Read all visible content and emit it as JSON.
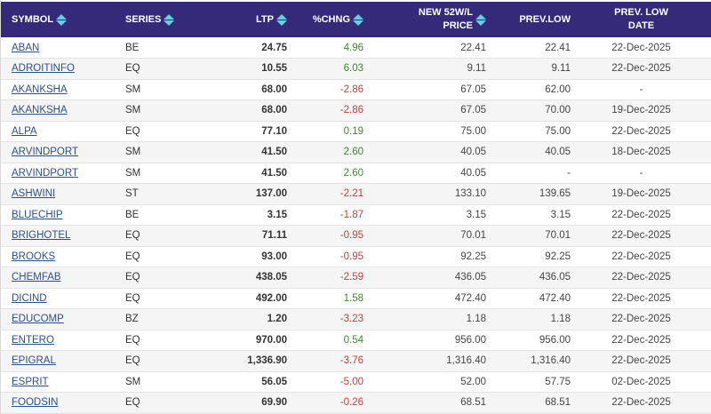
{
  "table": {
    "columns": [
      {
        "key": "symbol",
        "label": "SYMBOL",
        "sortable": true
      },
      {
        "key": "series",
        "label": "SERIES",
        "sortable": true
      },
      {
        "key": "ltp",
        "label": "LTP",
        "sortable": true
      },
      {
        "key": "pchng",
        "label": "%CHNG",
        "sortable": true
      },
      {
        "key": "new52wl",
        "label_line1": "NEW 52W/L",
        "label_line2": "PRICE",
        "sortable": true
      },
      {
        "key": "prevlow",
        "label": "PREV.LOW",
        "sortable": false
      },
      {
        "key": "prevlowdate",
        "label_line1": "PREV. LOW",
        "label_line2": "DATE",
        "sortable": false
      }
    ],
    "rows": [
      {
        "symbol": "ABAN",
        "series": "BE",
        "ltp": "24.75",
        "pchng": "4.96",
        "dir": "pos",
        "new52wl": "22.41",
        "prevlow": "22.41",
        "prevlowdate": "22-Dec-2025"
      },
      {
        "symbol": "ADROITINFO",
        "series": "EQ",
        "ltp": "10.55",
        "pchng": "6.03",
        "dir": "pos",
        "new52wl": "9.11",
        "prevlow": "9.11",
        "prevlowdate": "22-Dec-2025"
      },
      {
        "symbol": "AKANKSHA",
        "series": "SM",
        "ltp": "68.00",
        "pchng": "-2.86",
        "dir": "neg",
        "new52wl": "67.05",
        "prevlow": "62.00",
        "prevlowdate": "-"
      },
      {
        "symbol": "AKANKSHA",
        "series": "SM",
        "ltp": "68.00",
        "pchng": "-2.86",
        "dir": "neg",
        "new52wl": "67.05",
        "prevlow": "70.00",
        "prevlowdate": "19-Dec-2025"
      },
      {
        "symbol": "ALPA",
        "series": "EQ",
        "ltp": "77.10",
        "pchng": "0.19",
        "dir": "pos",
        "new52wl": "75.00",
        "prevlow": "75.00",
        "prevlowdate": "22-Dec-2025"
      },
      {
        "symbol": "ARVINDPORT",
        "series": "SM",
        "ltp": "41.50",
        "pchng": "2.60",
        "dir": "pos",
        "new52wl": "40.05",
        "prevlow": "40.05",
        "prevlowdate": "18-Dec-2025"
      },
      {
        "symbol": "ARVINDPORT",
        "series": "SM",
        "ltp": "41.50",
        "pchng": "2.60",
        "dir": "pos",
        "new52wl": "40.05",
        "prevlow": "-",
        "prevlowdate": "-"
      },
      {
        "symbol": "ASHWINI",
        "series": "ST",
        "ltp": "137.00",
        "pchng": "-2.21",
        "dir": "neg",
        "new52wl": "133.10",
        "prevlow": "139.65",
        "prevlowdate": "19-Dec-2025"
      },
      {
        "symbol": "BLUECHIP",
        "series": "BE",
        "ltp": "3.15",
        "pchng": "-1.87",
        "dir": "neg",
        "new52wl": "3.15",
        "prevlow": "3.15",
        "prevlowdate": "22-Dec-2025"
      },
      {
        "symbol": "BRIGHOTEL",
        "series": "EQ",
        "ltp": "71.11",
        "pchng": "-0.95",
        "dir": "neg",
        "new52wl": "70.01",
        "prevlow": "70.01",
        "prevlowdate": "22-Dec-2025"
      },
      {
        "symbol": "BROOKS",
        "series": "EQ",
        "ltp": "93.00",
        "pchng": "-0.95",
        "dir": "neg",
        "new52wl": "92.25",
        "prevlow": "92.25",
        "prevlowdate": "22-Dec-2025"
      },
      {
        "symbol": "CHEMFAB",
        "series": "EQ",
        "ltp": "438.05",
        "pchng": "-2.59",
        "dir": "neg",
        "new52wl": "436.05",
        "prevlow": "436.05",
        "prevlowdate": "22-Dec-2025"
      },
      {
        "symbol": "DICIND",
        "series": "EQ",
        "ltp": "492.00",
        "pchng": "1.58",
        "dir": "pos",
        "new52wl": "472.40",
        "prevlow": "472.40",
        "prevlowdate": "22-Dec-2025"
      },
      {
        "symbol": "EDUCOMP",
        "series": "BZ",
        "ltp": "1.20",
        "pchng": "-3.23",
        "dir": "neg",
        "new52wl": "1.18",
        "prevlow": "1.18",
        "prevlowdate": "22-Dec-2025"
      },
      {
        "symbol": "ENTERO",
        "series": "EQ",
        "ltp": "970.00",
        "pchng": "0.54",
        "dir": "pos",
        "new52wl": "956.00",
        "prevlow": "956.00",
        "prevlowdate": "22-Dec-2025"
      },
      {
        "symbol": "EPIGRAL",
        "series": "EQ",
        "ltp": "1,336.90",
        "pchng": "-3.76",
        "dir": "neg",
        "new52wl": "1,316.40",
        "prevlow": "1,316.40",
        "prevlowdate": "22-Dec-2025"
      },
      {
        "symbol": "ESPRIT",
        "series": "SM",
        "ltp": "56.05",
        "pchng": "-5.00",
        "dir": "neg",
        "new52wl": "52.00",
        "prevlow": "57.75",
        "prevlowdate": "02-Dec-2025"
      },
      {
        "symbol": "FOODSIN",
        "series": "EQ",
        "ltp": "69.90",
        "pchng": "-0.26",
        "dir": "neg",
        "new52wl": "68.51",
        "prevlow": "68.51",
        "prevlowdate": "22-Dec-2025"
      }
    ]
  },
  "colors": {
    "header_bg": "#35297a",
    "header_text": "#ffffff",
    "sort_icon": "#5fd3e3",
    "link": "#2d4f8e",
    "positive": "#3b8a2d",
    "negative": "#d0393a",
    "row_alt": "#f5f5f5"
  }
}
